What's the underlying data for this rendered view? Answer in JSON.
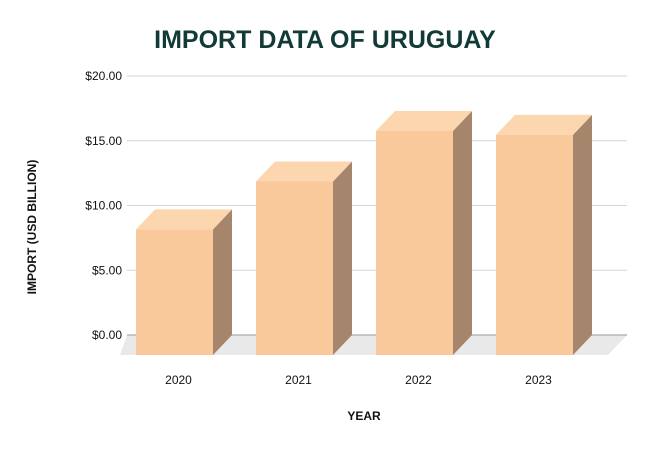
{
  "chart_data": {
    "type": "bar",
    "title": "IMPORT DATA OF URUGUAY",
    "xlabel": "YEAR",
    "ylabel": "IMPORT (USD BILLION)",
    "categories": [
      "2020",
      "2021",
      "2022",
      "2023"
    ],
    "values": [
      9.7,
      13.4,
      17.3,
      17.0
    ],
    "ylim": [
      0,
      20
    ],
    "yticks": [
      0,
      5,
      10,
      15,
      20
    ],
    "ytick_labels": [
      "$0.00",
      "$5.00",
      "$10.00",
      "$15.00",
      "$20.00"
    ],
    "grid": true,
    "legend": "none",
    "style": "3d-column",
    "colors": {
      "bar_front": "#f9c99b",
      "bar_top": "#fcd6ae",
      "bar_side": "#a5856b",
      "floor": "#e9e9e9",
      "grid": "#d6d6d6",
      "title": "#123a36"
    }
  }
}
